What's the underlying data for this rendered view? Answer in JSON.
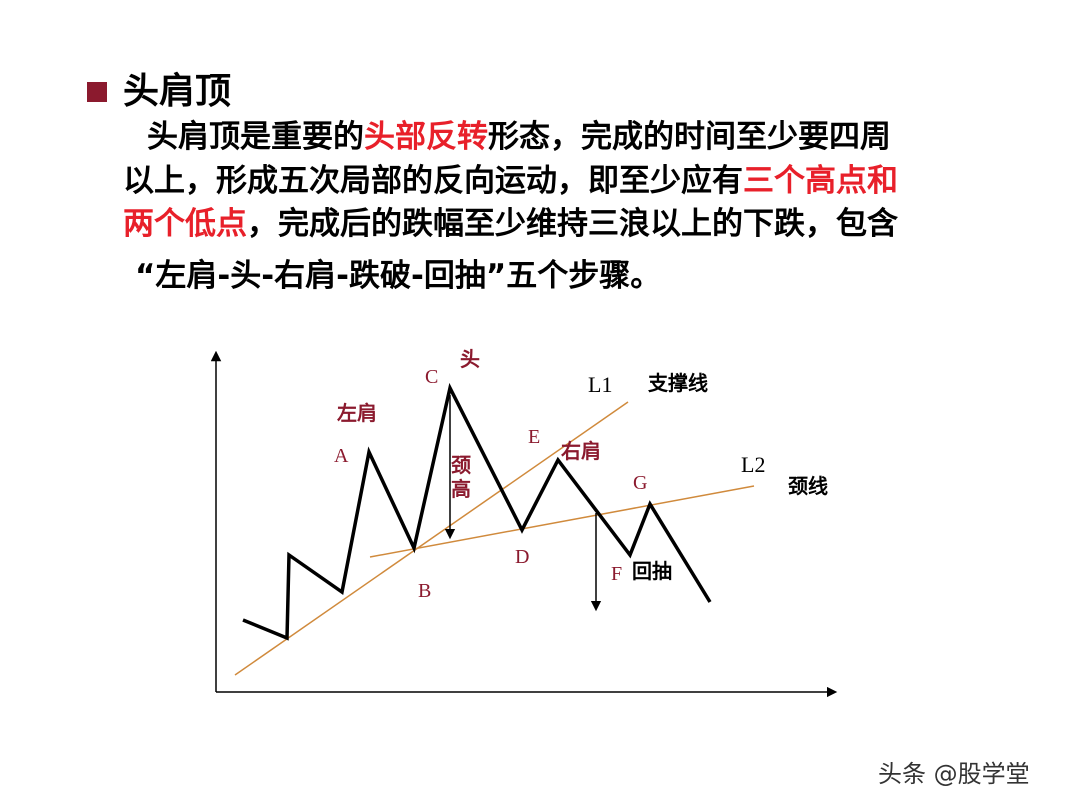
{
  "slide": {
    "title": "头肩顶",
    "bullet_color": "#8b1a2e",
    "highlight_color": "#e8202a",
    "paragraph": {
      "line1": {
        "pre": "头肩顶是重要的",
        "hl": "头部反转",
        "post": "形态，完成的时间至少要四周"
      },
      "line2": {
        "pre": "以上，形成五次局部的反向运动，即至少应有",
        "hl": "三个高点和"
      },
      "line3": {
        "hl": "两个低点",
        "post": "，完成后的跌幅至少维持三浪以上的下跌，包含"
      },
      "line4": "“左肩-头-右肩-跌破-回抽”五个步骤。"
    }
  },
  "diagram": {
    "point_labels": {
      "A": "A",
      "B": "B",
      "C": "C",
      "D": "D",
      "E": "E",
      "F": "F",
      "G": "G"
    },
    "line_labels": {
      "L1": "L1",
      "L2": "L2"
    },
    "annotations": {
      "left_shoulder": "左肩",
      "head": "头",
      "right_shoulder": "右肩",
      "neck_height": "颈高",
      "support_line": "支撑线",
      "neckline": "颈线",
      "pullback": "回抽"
    },
    "colors": {
      "price_line": "#000000",
      "trend_line": "#d08a3c",
      "annotation": "#8b1a2e"
    }
  },
  "watermark": "头条 @股学堂"
}
